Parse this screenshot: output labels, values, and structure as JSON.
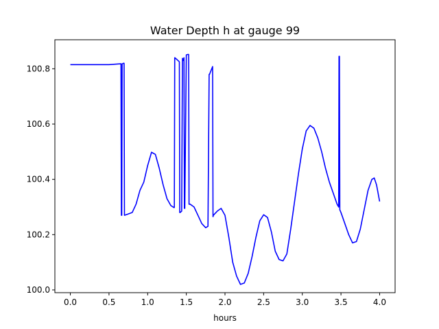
{
  "chart_data": {
    "type": "line",
    "title": "Water Depth h at gauge 99",
    "xlabel": "hours",
    "ylabel": "",
    "xlim": [
      -0.2,
      4.2
    ],
    "ylim": [
      99.99,
      100.905
    ],
    "grid": false,
    "x_ticks": [
      0.0,
      0.5,
      1.0,
      1.5,
      2.0,
      2.5,
      3.0,
      3.5,
      4.0
    ],
    "x_tick_labels": [
      "0.0",
      "0.5",
      "1.0",
      "1.5",
      "2.0",
      "2.5",
      "3.0",
      "3.5",
      "4.0"
    ],
    "y_ticks": [
      100.0,
      100.2,
      100.4,
      100.6,
      100.8
    ],
    "y_tick_labels": [
      "100.0",
      "100.2",
      "100.4",
      "100.6",
      "100.8"
    ],
    "series": [
      {
        "color": "#0000ff",
        "x": [
          0.0,
          0.5,
          0.65,
          0.655,
          0.66,
          0.665,
          0.67,
          0.69,
          0.695,
          0.7,
          0.75,
          0.8,
          0.85,
          0.9,
          0.95,
          1.0,
          1.05,
          1.1,
          1.15,
          1.2,
          1.25,
          1.3,
          1.34,
          1.345,
          1.35,
          1.36,
          1.4,
          1.41,
          1.415,
          1.42,
          1.44,
          1.45,
          1.46,
          1.47,
          1.475,
          1.48,
          1.5,
          1.52,
          1.53,
          1.535,
          1.55,
          1.6,
          1.65,
          1.7,
          1.75,
          1.78,
          1.795,
          1.8,
          1.84,
          1.845,
          1.85,
          1.9,
          1.95,
          2.0,
          2.05,
          2.1,
          2.15,
          2.2,
          2.25,
          2.3,
          2.35,
          2.4,
          2.45,
          2.5,
          2.55,
          2.6,
          2.65,
          2.7,
          2.75,
          2.8,
          2.85,
          2.9,
          2.95,
          3.0,
          3.05,
          3.1,
          3.15,
          3.2,
          3.25,
          3.3,
          3.35,
          3.4,
          3.45,
          3.47,
          3.475,
          3.48,
          3.485,
          3.5,
          3.55,
          3.6,
          3.65,
          3.7,
          3.75,
          3.8,
          3.85,
          3.9,
          3.93,
          3.96,
          4.0
        ],
        "y": [
          100.815,
          100.815,
          100.818,
          100.818,
          100.27,
          100.27,
          100.818,
          100.82,
          100.82,
          100.27,
          100.275,
          100.28,
          100.31,
          100.36,
          100.39,
          100.45,
          100.498,
          100.49,
          100.44,
          100.38,
          100.33,
          100.305,
          100.298,
          100.298,
          100.84,
          100.838,
          100.828,
          100.825,
          100.28,
          100.28,
          100.285,
          100.838,
          100.83,
          100.84,
          100.295,
          100.295,
          100.85,
          100.852,
          100.852,
          100.31,
          100.31,
          100.3,
          100.27,
          100.24,
          100.225,
          100.23,
          100.78,
          100.78,
          100.808,
          100.265,
          100.27,
          100.285,
          100.295,
          100.27,
          100.19,
          100.1,
          100.05,
          100.02,
          100.025,
          100.06,
          100.12,
          100.19,
          100.25,
          100.272,
          100.262,
          100.21,
          100.14,
          100.11,
          100.105,
          100.13,
          100.22,
          100.32,
          100.42,
          100.51,
          100.575,
          100.595,
          100.585,
          100.55,
          100.5,
          100.44,
          100.39,
          100.35,
          100.31,
          100.3,
          100.845,
          100.845,
          100.29,
          100.28,
          100.24,
          100.2,
          100.17,
          100.175,
          100.22,
          100.29,
          100.36,
          100.4,
          100.405,
          100.38,
          100.32
        ]
      }
    ]
  }
}
